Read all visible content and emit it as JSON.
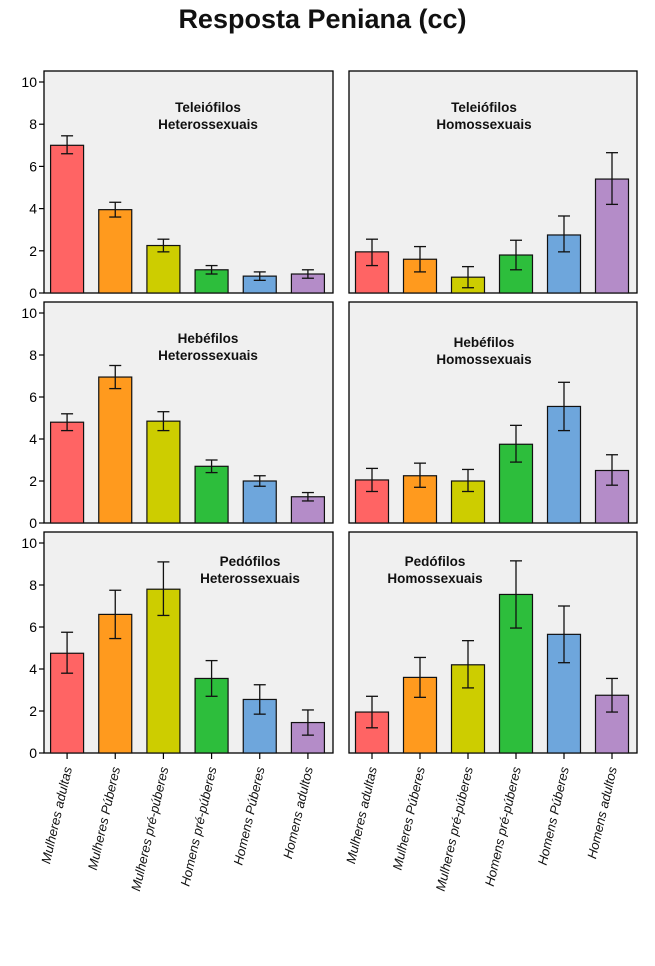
{
  "title": "Resposta Peniana (cc)",
  "categories": [
    "Mulheres adultas",
    "Mulheres Púberes",
    "Mulheres pré-púberes",
    "Homens pré-púberes",
    "Homens Púberes",
    "Homens adultos"
  ],
  "colors": [
    "#ff6464",
    "#ff9a1e",
    "#cdcd00",
    "#2dbe3c",
    "#6ea6dc",
    "#b48cc8"
  ],
  "chart_data": [
    {
      "type": "bar",
      "title": [
        "Teleiófilos",
        "Heterossexuais"
      ],
      "ylim": [
        0,
        10
      ],
      "yticks": [
        0,
        2,
        4,
        6,
        8,
        10
      ],
      "values": [
        7.0,
        3.95,
        2.25,
        1.1,
        0.8,
        0.9
      ],
      "error_low": [
        6.6,
        3.6,
        1.95,
        0.9,
        0.6,
        0.7
      ],
      "error_high": [
        7.45,
        4.3,
        2.55,
        1.3,
        1.0,
        1.1
      ]
    },
    {
      "type": "bar",
      "title": [
        "Teleiófilos",
        "Homossexuais"
      ],
      "ylim": [
        0,
        10
      ],
      "yticks": [
        0,
        2,
        4,
        6,
        8,
        10
      ],
      "values": [
        1.95,
        1.6,
        0.75,
        1.8,
        2.75,
        5.4
      ],
      "error_low": [
        1.3,
        1.0,
        0.25,
        1.1,
        1.95,
        4.2
      ],
      "error_high": [
        2.55,
        2.2,
        1.25,
        2.5,
        3.65,
        6.65
      ]
    },
    {
      "type": "bar",
      "title": [
        "Hebéfilos",
        "Heterossexuais"
      ],
      "ylim": [
        0,
        10
      ],
      "yticks": [
        0,
        2,
        4,
        6,
        8,
        10
      ],
      "values": [
        4.8,
        6.95,
        4.85,
        2.7,
        2.0,
        1.25
      ],
      "error_low": [
        4.4,
        6.4,
        4.4,
        2.4,
        1.75,
        1.05
      ],
      "error_high": [
        5.2,
        7.5,
        5.3,
        3.0,
        2.25,
        1.45
      ]
    },
    {
      "type": "bar",
      "title": [
        "Hebéfilos",
        "Homossexuais"
      ],
      "ylim": [
        0,
        10
      ],
      "yticks": [
        0,
        2,
        4,
        6,
        8,
        10
      ],
      "values": [
        2.05,
        2.25,
        2.0,
        3.75,
        5.55,
        2.5
      ],
      "error_low": [
        1.5,
        1.7,
        1.5,
        2.9,
        4.4,
        1.8
      ],
      "error_high": [
        2.6,
        2.85,
        2.55,
        4.65,
        6.7,
        3.25
      ]
    },
    {
      "type": "bar",
      "title": [
        "Pedófilos",
        "Heterossexuais"
      ],
      "ylim": [
        0,
        10
      ],
      "yticks": [
        0,
        2,
        4,
        6,
        8,
        10
      ],
      "values": [
        4.75,
        6.6,
        7.8,
        3.55,
        2.55,
        1.45
      ],
      "error_low": [
        3.8,
        5.45,
        6.55,
        2.7,
        1.85,
        0.85
      ],
      "error_high": [
        5.75,
        7.75,
        9.1,
        4.4,
        3.25,
        2.05
      ]
    },
    {
      "type": "bar",
      "title": [
        "Pedófilos",
        "Homossexuais"
      ],
      "ylim": [
        0,
        10
      ],
      "yticks": [
        0,
        2,
        4,
        6,
        8,
        10
      ],
      "values": [
        1.95,
        3.6,
        4.2,
        7.55,
        5.65,
        2.75
      ],
      "error_low": [
        1.2,
        2.65,
        3.1,
        5.95,
        4.3,
        1.95
      ],
      "error_high": [
        2.7,
        4.55,
        5.35,
        9.15,
        7.0,
        3.55
      ]
    }
  ]
}
